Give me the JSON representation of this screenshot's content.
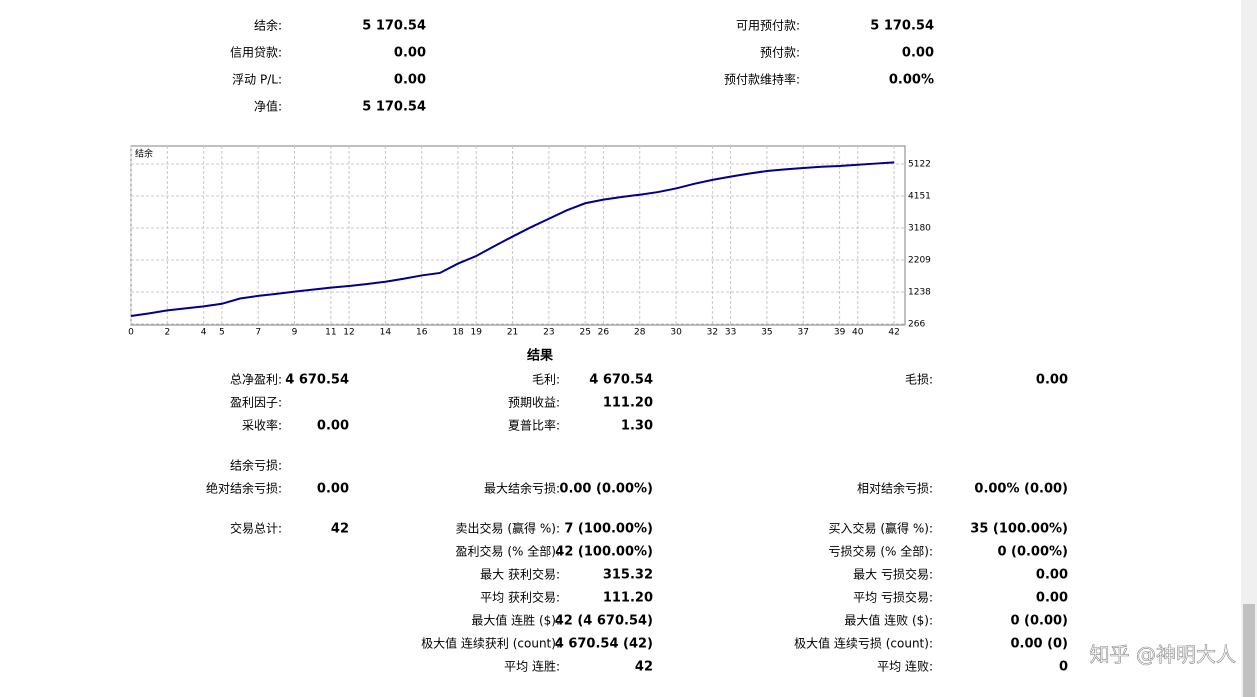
{
  "summary": {
    "left": [
      {
        "label": "结余:",
        "value": "5 170.54"
      },
      {
        "label": "信用贷款:",
        "value": "0.00"
      },
      {
        "label": "浮动 P/L:",
        "value": "0.00"
      },
      {
        "label": "净值:",
        "value": "5 170.54"
      }
    ],
    "right": [
      {
        "label": "可用预付款:",
        "value": "5 170.54"
      },
      {
        "label": "预付款:",
        "value": "0.00"
      },
      {
        "label": "预付款维持率:",
        "value": "0.00%"
      }
    ]
  },
  "chart_data": {
    "type": "line",
    "title": "结余",
    "x": [
      0,
      1,
      2,
      3,
      4,
      5,
      6,
      7,
      8,
      9,
      10,
      11,
      12,
      13,
      14,
      15,
      16,
      17,
      18,
      19,
      20,
      21,
      22,
      23,
      24,
      25,
      26,
      27,
      28,
      29,
      30,
      31,
      32,
      33,
      34,
      35,
      36,
      37,
      38,
      39,
      40,
      41,
      42
    ],
    "series": [
      {
        "name": "结余",
        "color": "#00008b",
        "values": [
          509,
          590,
          680,
          740,
          800,
          880,
          1040,
          1120,
          1180,
          1250,
          1310,
          1370,
          1420,
          1480,
          1550,
          1640,
          1740,
          1815,
          2100,
          2330,
          2630,
          2920,
          3200,
          3460,
          3720,
          3930,
          4040,
          4120,
          4190,
          4270,
          4380,
          4520,
          4640,
          4740,
          4830,
          4909,
          4960,
          5000,
          5040,
          5061,
          5100,
          5135,
          5170.54
        ]
      }
    ],
    "xlim": [
      0,
      42.6
    ],
    "xticks": [
      0,
      2,
      4,
      5,
      7,
      9,
      11,
      12,
      14,
      16,
      18,
      19,
      21,
      23,
      25,
      26,
      28,
      30,
      32,
      33,
      35,
      37,
      39,
      40,
      42
    ],
    "ylim": [
      236,
      5668
    ],
    "yticks": [
      266,
      1238,
      2209,
      3180,
      4151,
      5122
    ],
    "grid": true
  },
  "results": {
    "title": "结果",
    "rows": [
      {
        "left": {
          "label": "总净盈利:",
          "value": "4 670.54"
        },
        "middle": {
          "label": "毛利:",
          "value": "4 670.54"
        },
        "right": {
          "label": "毛损:",
          "value": "0.00"
        }
      },
      {
        "left": {
          "label": "盈利因子:"
        },
        "middle": {
          "label": "预期收益:",
          "value": "111.20"
        }
      },
      {
        "left": {
          "label": "采收率:",
          "value": "0.00"
        },
        "middle": {
          "label": "夏普比率:",
          "value": "1.30"
        }
      },
      {
        "left": {
          "label": "结余亏损:"
        }
      },
      {
        "left": {
          "label": "绝对结余亏损:",
          "value": "0.00"
        },
        "middle": {
          "label": "最大结余亏损:",
          "value": "0.00 (0.00%)"
        },
        "right": {
          "label": "相对结余亏损:",
          "value": "0.00% (0.00)"
        }
      },
      {
        "left": {
          "label": "交易总计:",
          "value": "42"
        },
        "middle": {
          "label": "卖出交易 (赢得 %):",
          "value": "7 (100.00%)"
        },
        "right": {
          "label": "买入交易 (赢得 %):",
          "value": "35 (100.00%)"
        }
      },
      {
        "middle": {
          "label": "盈利交易 (% 全部):",
          "value": "42 (100.00%)"
        },
        "right": {
          "label": "亏损交易 (% 全部):",
          "value": "0 (0.00%)"
        }
      },
      {
        "middle": {
          "label": "最大 获利交易:",
          "value": "315.32"
        },
        "right": {
          "label": "最大 亏损交易:",
          "value": "0.00"
        }
      },
      {
        "middle": {
          "label": "平均 获利交易:",
          "value": "111.20"
        },
        "right": {
          "label": "平均 亏损交易:",
          "value": "0.00"
        }
      },
      {
        "middle": {
          "label": "最大值 连胜 ($):",
          "value": "42 (4 670.54)"
        },
        "right": {
          "label": "最大值 连败 ($):",
          "value": "0 (0.00)"
        }
      },
      {
        "middle": {
          "label": "极大值 连续获利 (count):",
          "value": "4 670.54 (42)"
        },
        "right": {
          "label": "极大值 连续亏损 (count):",
          "value": "0.00 (0)"
        }
      },
      {
        "middle": {
          "label": "平均 连胜:",
          "value": "42"
        },
        "right": {
          "label": "平均 连败:",
          "value": "0"
        }
      }
    ]
  },
  "watermark": "知乎 @神明大人"
}
